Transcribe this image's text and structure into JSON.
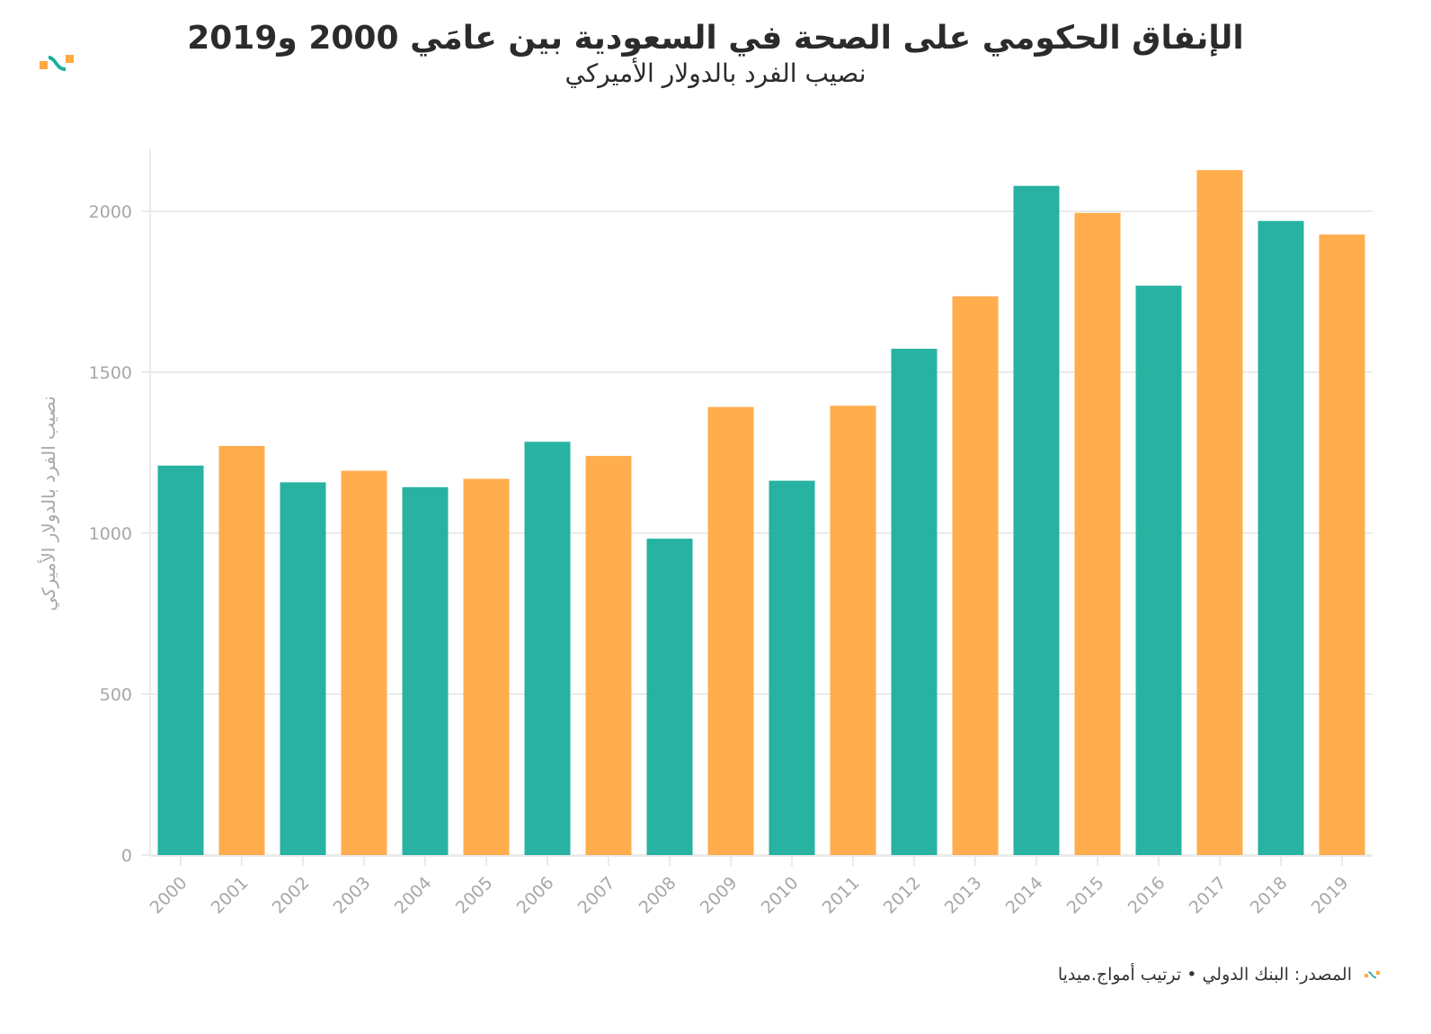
{
  "header": {
    "title": "الإنفاق الحكومي على الصحة في السعودية بين عامَي 2000 و2019",
    "subtitle": "نصيب الفرد بالدولار الأميركي"
  },
  "footer": {
    "source": "المصدر: البنك الدولي • ترتيب أمواج.ميديا"
  },
  "brand": {
    "logo_icon": "amwaj-media-logo-icon",
    "colors": {
      "teal": "#1bae9d",
      "orange": "#ffa943",
      "grid": "#ebebeb",
      "axis_text": "#a7a7a7",
      "title": "#2b2b2b"
    }
  },
  "chart_data": {
    "type": "bar",
    "title": "الإنفاق الحكومي على الصحة في السعودية بين عامَي 2000 و2019",
    "subtitle": "نصيب الفرد بالدولار الأميركي",
    "xlabel": "",
    "ylabel": "نصيب الفرد بالدولار الأميركي",
    "categories": [
      "2000",
      "2001",
      "2002",
      "2003",
      "2004",
      "2005",
      "2006",
      "2007",
      "2008",
      "2009",
      "2010",
      "2011",
      "2012",
      "2013",
      "2014",
      "2015",
      "2016",
      "2017",
      "2018",
      "2019"
    ],
    "values": [
      1210,
      1271,
      1158,
      1194,
      1143,
      1169,
      1284,
      1240,
      983,
      1392,
      1163,
      1396,
      1573,
      1736,
      2079,
      1995,
      1769,
      2128,
      1970,
      1928
    ],
    "bar_colors_alternating": [
      "#1bae9d",
      "#ffa943"
    ],
    "ylim": [
      0,
      2200
    ],
    "yticks": [
      0,
      500,
      1000,
      1500,
      2000
    ],
    "ytick_labels": [
      "0",
      "500",
      "1000",
      "1500",
      "2000"
    ],
    "grid": "horizontal",
    "legend": "none",
    "xtick_rotation": "diagonal"
  }
}
